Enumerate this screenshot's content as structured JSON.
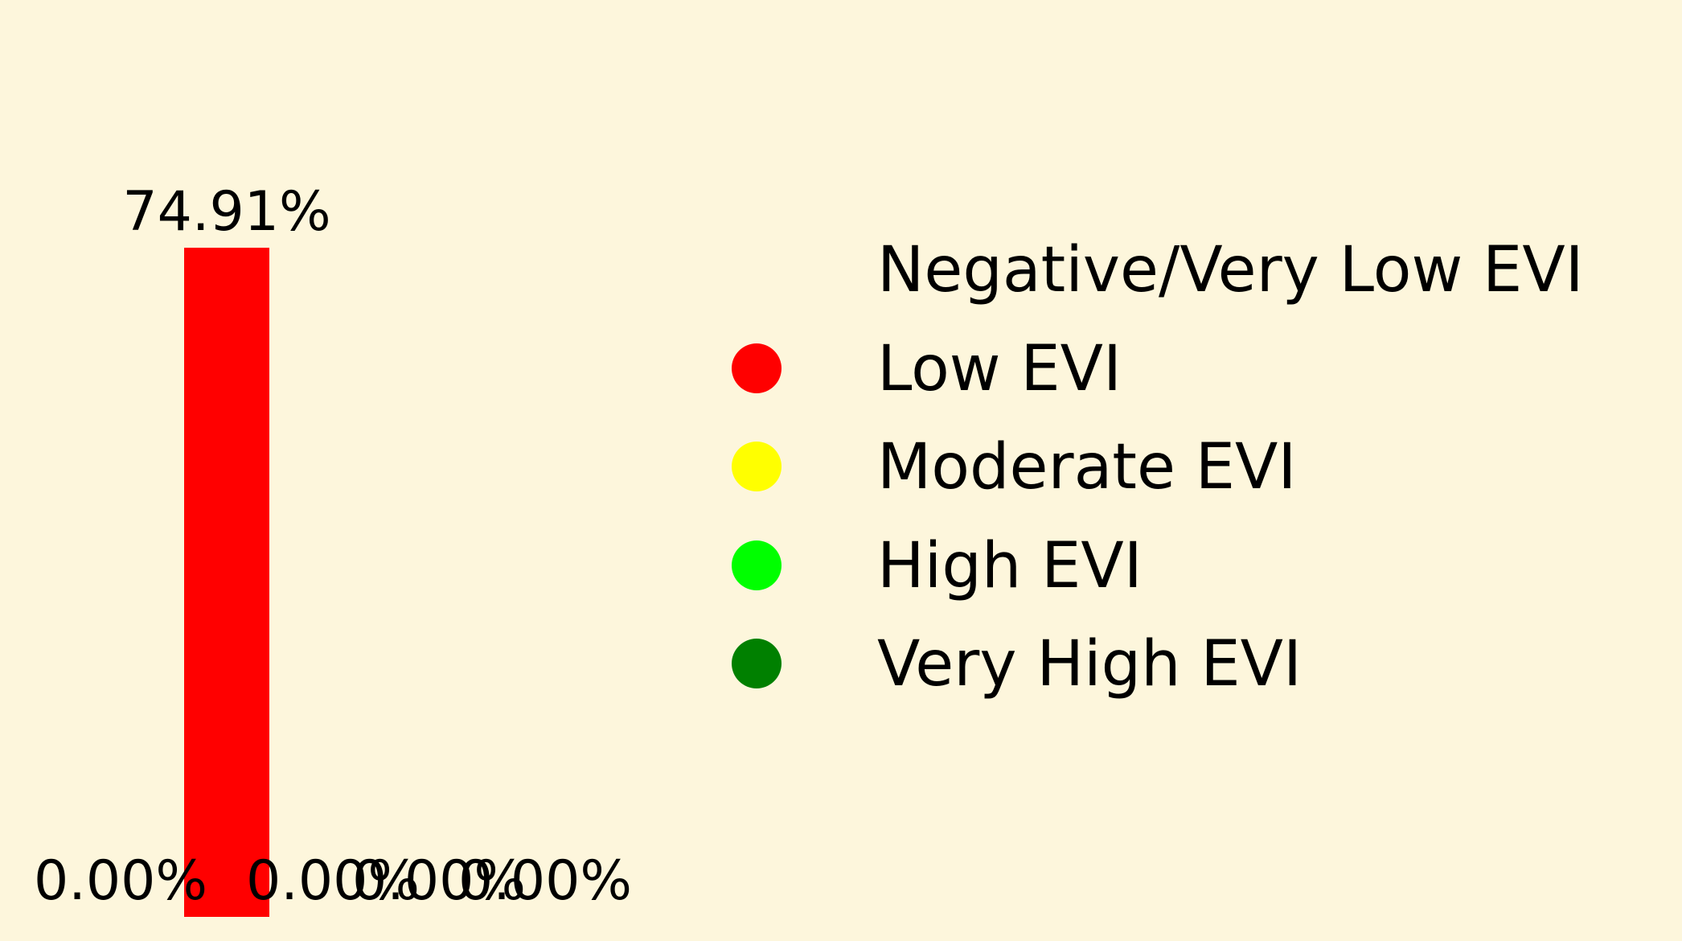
{
  "chart_data": {
    "type": "bar",
    "title": "",
    "xlabel": "",
    "ylabel": "",
    "categories": [
      "Negative/Very Low EVI",
      "Low EVI",
      "Moderate EVI",
      "High EVI",
      "Very High EVI"
    ],
    "values": [
      0.0,
      74.91,
      0.0,
      0.0,
      0.0
    ],
    "data_labels": [
      "0.00%",
      "74.91%",
      "0.00%",
      "0.00%",
      "0.00%"
    ],
    "colors": [
      "#fdf6dc",
      "#ff0000",
      "#ffff00",
      "#00ff00",
      "#008000"
    ],
    "ylim": [
      0,
      74.91
    ],
    "grid": false,
    "legend": {
      "placement": "right",
      "entries": [
        "Negative/Very Low EVI",
        "Low EVI",
        "Moderate EVI",
        "High EVI",
        "Very High EVI"
      ]
    }
  },
  "colors": {
    "background": "#fdf6dc",
    "text": "#000000"
  }
}
